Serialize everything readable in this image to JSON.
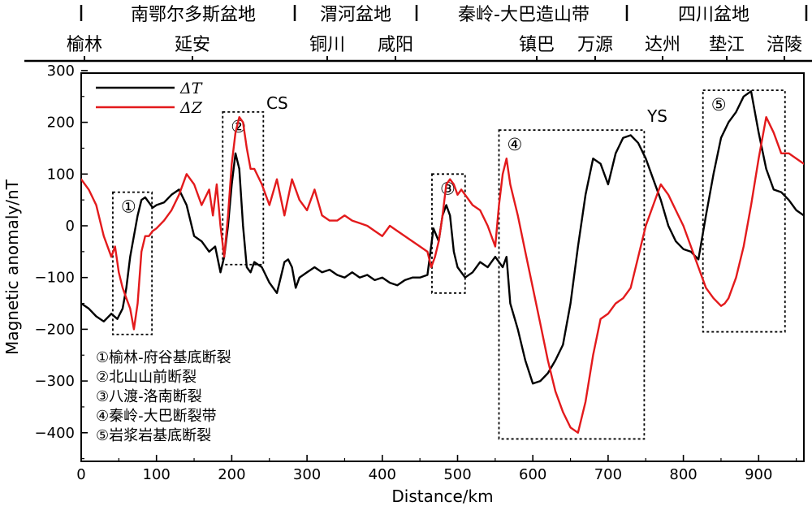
{
  "chart_data": {
    "type": "line",
    "xlabel": "Distance/km",
    "ylabel": "Magnetic anomaly/nT",
    "xlim": [
      0,
      960
    ],
    "ylim": [
      -450,
      300
    ],
    "xticks": [
      0,
      100,
      200,
      300,
      400,
      500,
      600,
      700,
      800,
      900
    ],
    "yticks": [
      300,
      200,
      100,
      0,
      -100,
      -200,
      -300,
      -400
    ],
    "grid": false,
    "legend_position": "top-left",
    "regions": [
      {
        "label": "南鄂尔多斯盆地",
        "x_start": 0,
        "x_end": 270
      },
      {
        "label": "渭河盆地",
        "x_start": 270,
        "x_end": 450
      },
      {
        "label": "秦岭-大巴造山带",
        "x_start": 450,
        "x_end": 735
      },
      {
        "label": "四川盆地",
        "x_start": 735,
        "x_end": 960
      }
    ],
    "places": [
      {
        "label": "榆林",
        "x": 0
      },
      {
        "label": "延安",
        "x": 140
      },
      {
        "label": "铜川",
        "x": 300
      },
      {
        "label": "咸阳",
        "x": 405
      },
      {
        "label": "镇巴",
        "x": 600
      },
      {
        "label": "万源",
        "x": 680
      },
      {
        "label": "达州",
        "x": 772
      },
      {
        "label": "垫江",
        "x": 862
      },
      {
        "label": "涪陵",
        "x": 945
      }
    ],
    "boxes": [
      {
        "label": "①",
        "x0": 42,
        "x1": 94,
        "y0": -210,
        "y1": 65
      },
      {
        "label": "②",
        "x0": 188,
        "x1": 242,
        "y0": -75,
        "y1": 220
      },
      {
        "label": "③",
        "x0": 466,
        "x1": 510,
        "y0": -130,
        "y1": 100
      },
      {
        "label": "④",
        "x0": 555,
        "x1": 748,
        "y0": -412,
        "y1": 185
      },
      {
        "label": "⑤",
        "x0": 826,
        "x1": 935,
        "y0": -205,
        "y1": 262
      }
    ],
    "annotations": [
      {
        "text": "CS",
        "x": 246,
        "y": 220
      },
      {
        "text": "YS",
        "x": 752,
        "y": 195
      }
    ],
    "fault_legend": [
      "①榆林-府谷基底断裂",
      "②北山山前断裂",
      "③八渡-洛南断裂",
      "④秦岭-大巴断裂带",
      "⑤岩浆岩基底断裂"
    ],
    "series": [
      {
        "name": "ΔT",
        "color": "#000000",
        "x": [
          0,
          10,
          20,
          30,
          40,
          48,
          55,
          60,
          65,
          70,
          75,
          80,
          85,
          90,
          95,
          100,
          110,
          120,
          130,
          140,
          150,
          160,
          170,
          178,
          185,
          190,
          195,
          200,
          205,
          210,
          215,
          220,
          225,
          230,
          240,
          250,
          260,
          265,
          270,
          275,
          280,
          285,
          290,
          300,
          310,
          320,
          330,
          340,
          350,
          360,
          370,
          380,
          390,
          400,
          410,
          420,
          430,
          440,
          450,
          460,
          468,
          475,
          480,
          485,
          490,
          495,
          500,
          510,
          520,
          530,
          540,
          550,
          560,
          565,
          570,
          580,
          590,
          600,
          610,
          620,
          630,
          640,
          650,
          660,
          670,
          680,
          690,
          700,
          710,
          720,
          730,
          740,
          750,
          760,
          770,
          780,
          790,
          800,
          810,
          820,
          830,
          840,
          850,
          860,
          870,
          880,
          890,
          900,
          910,
          920,
          930,
          940,
          950,
          960
        ],
        "y": [
          -150,
          -160,
          -175,
          -185,
          -170,
          -180,
          -160,
          -120,
          -60,
          -20,
          20,
          50,
          55,
          45,
          35,
          40,
          45,
          60,
          70,
          40,
          -20,
          -30,
          -50,
          -40,
          -90,
          -60,
          0,
          80,
          140,
          110,
          0,
          -80,
          -90,
          -70,
          -80,
          -110,
          -130,
          -100,
          -70,
          -65,
          -80,
          -120,
          -100,
          -90,
          -80,
          -90,
          -85,
          -95,
          -100,
          -90,
          -100,
          -95,
          -105,
          -100,
          -110,
          -115,
          -105,
          -100,
          -100,
          -95,
          -5,
          -30,
          20,
          40,
          20,
          -50,
          -80,
          -100,
          -90,
          -70,
          -80,
          -60,
          -80,
          -60,
          -150,
          -200,
          -260,
          -305,
          -300,
          -285,
          -260,
          -230,
          -150,
          -40,
          60,
          130,
          120,
          80,
          140,
          170,
          175,
          160,
          130,
          90,
          50,
          0,
          -30,
          -45,
          -50,
          -65,
          20,
          100,
          170,
          200,
          220,
          250,
          260,
          180,
          110,
          70,
          65,
          50,
          30,
          20
        ]
      },
      {
        "name": "ΔZ",
        "color": "#e31a1c",
        "x": [
          0,
          10,
          20,
          30,
          40,
          45,
          50,
          55,
          60,
          65,
          70,
          75,
          80,
          85,
          90,
          95,
          100,
          110,
          120,
          130,
          140,
          150,
          160,
          170,
          175,
          180,
          185,
          190,
          195,
          200,
          205,
          210,
          215,
          220,
          225,
          230,
          240,
          250,
          260,
          270,
          280,
          290,
          300,
          310,
          320,
          330,
          340,
          350,
          360,
          370,
          380,
          390,
          400,
          410,
          420,
          430,
          440,
          450,
          460,
          465,
          470,
          475,
          480,
          485,
          490,
          495,
          500,
          505,
          510,
          520,
          530,
          540,
          550,
          555,
          560,
          565,
          570,
          580,
          590,
          600,
          610,
          620,
          630,
          640,
          650,
          660,
          670,
          680,
          690,
          700,
          710,
          720,
          730,
          740,
          750,
          760,
          770,
          780,
          790,
          800,
          810,
          820,
          830,
          840,
          850,
          855,
          860,
          870,
          880,
          890,
          900,
          910,
          920,
          930,
          940,
          950,
          960
        ],
        "y": [
          90,
          70,
          40,
          -20,
          -60,
          -40,
          -90,
          -120,
          -140,
          -160,
          -200,
          -150,
          -50,
          -20,
          -20,
          -10,
          -5,
          10,
          30,
          60,
          100,
          80,
          40,
          70,
          20,
          80,
          0,
          -60,
          20,
          120,
          180,
          210,
          200,
          150,
          110,
          110,
          80,
          40,
          90,
          20,
          90,
          50,
          30,
          70,
          20,
          10,
          10,
          20,
          10,
          5,
          0,
          -10,
          -20,
          0,
          -10,
          -20,
          -30,
          -40,
          -50,
          -80,
          -60,
          -30,
          20,
          80,
          90,
          80,
          60,
          70,
          60,
          40,
          30,
          0,
          -40,
          40,
          100,
          130,
          80,
          20,
          -50,
          -120,
          -190,
          -260,
          -320,
          -360,
          -390,
          -400,
          -340,
          -250,
          -180,
          -170,
          -150,
          -140,
          -120,
          -60,
          0,
          40,
          80,
          60,
          30,
          0,
          -40,
          -80,
          -120,
          -140,
          -155,
          -150,
          -140,
          -100,
          -40,
          40,
          130,
          210,
          180,
          140,
          140,
          130,
          120
        ]
      }
    ]
  }
}
